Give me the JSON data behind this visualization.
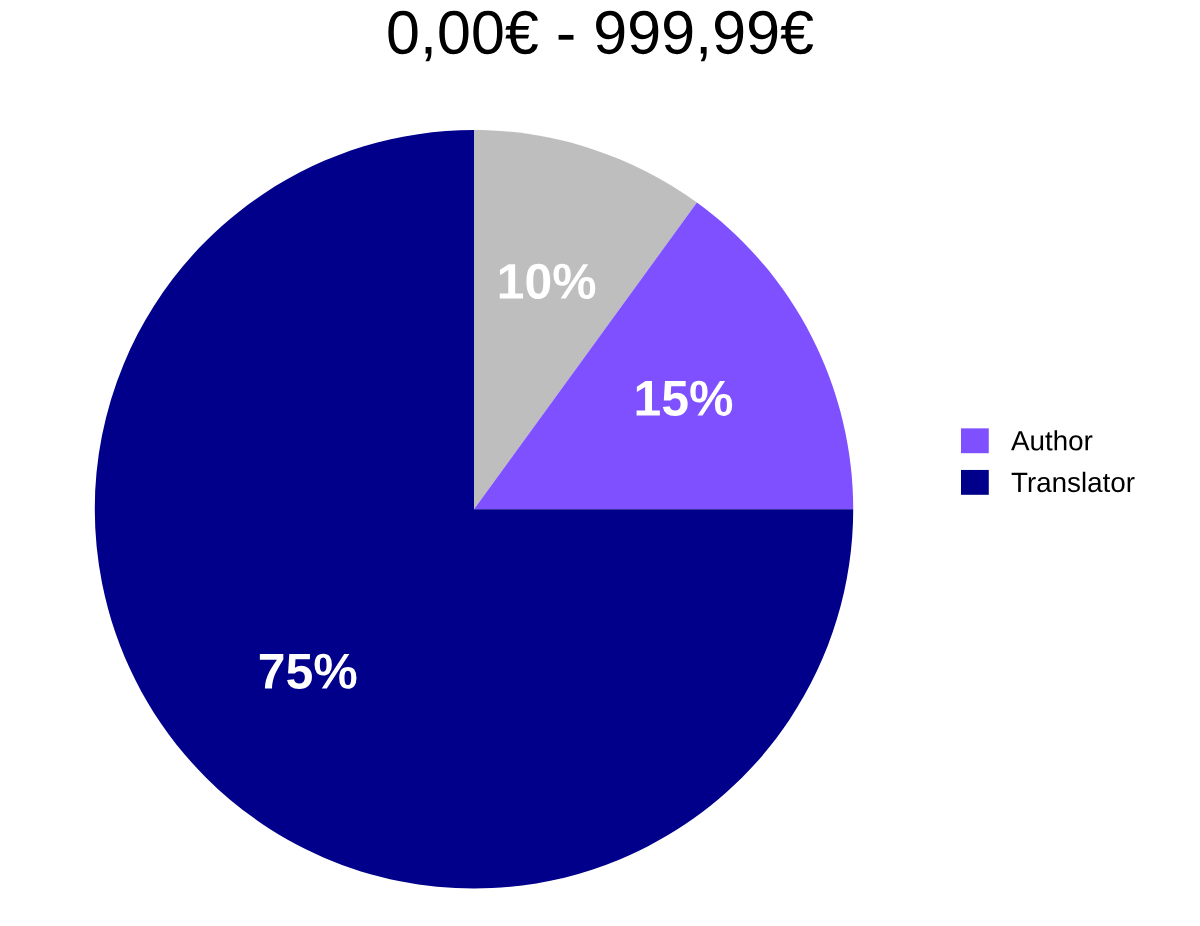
{
  "chart_data": {
    "type": "pie",
    "title": "0,00€ - 999,99€",
    "categories": [
      null,
      "Author",
      "Translator"
    ],
    "values": [
      10,
      15,
      75
    ],
    "colors": [
      "#bebebe",
      "#7f50ff",
      "#00008b"
    ],
    "value_labels": [
      "10%",
      "15%",
      "75%"
    ],
    "legend": "right"
  }
}
